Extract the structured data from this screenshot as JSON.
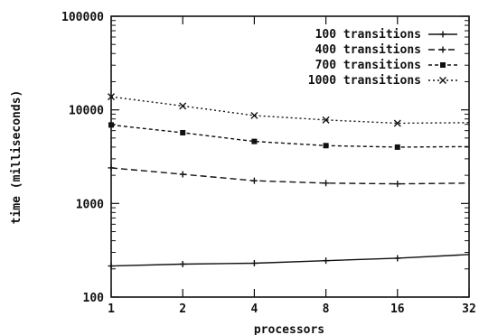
{
  "chart_data": {
    "type": "line",
    "title": "",
    "xlabel": "processors",
    "ylabel": "time (milliseconds)",
    "x_scale": "log2",
    "y_scale": "log10",
    "x": [
      1,
      2,
      4,
      8,
      16,
      32
    ],
    "x_tick_labels": [
      "1",
      "2",
      "4",
      "8",
      "16",
      "32"
    ],
    "y_tick_values": [
      100,
      1000,
      10000,
      100000
    ],
    "y_tick_labels": [
      "100",
      "1000",
      "10000",
      "100000"
    ],
    "xlim": [
      1,
      32
    ],
    "ylim": [
      100,
      100000
    ],
    "grid": false,
    "legend_position": "top-right",
    "series": [
      {
        "name": "100 transitions",
        "line_style": "solid",
        "marker": "plus",
        "values": [
          215,
          225,
          230,
          245,
          260,
          285
        ]
      },
      {
        "name": "400 transitions",
        "line_style": "dashed",
        "marker": "plus",
        "values": [
          2400,
          2050,
          1750,
          1650,
          1620,
          1650
        ]
      },
      {
        "name": "700 transitions",
        "line_style": "dashed-dotted",
        "marker": "filled-square",
        "values": [
          6900,
          5700,
          4600,
          4150,
          4000,
          4050
        ]
      },
      {
        "name": "1000 transitions",
        "line_style": "dotted",
        "marker": "x",
        "values": [
          13800,
          11000,
          8700,
          7800,
          7200,
          7300
        ]
      }
    ],
    "colors": {
      "line": "#111111",
      "background": "#ffffff"
    }
  }
}
